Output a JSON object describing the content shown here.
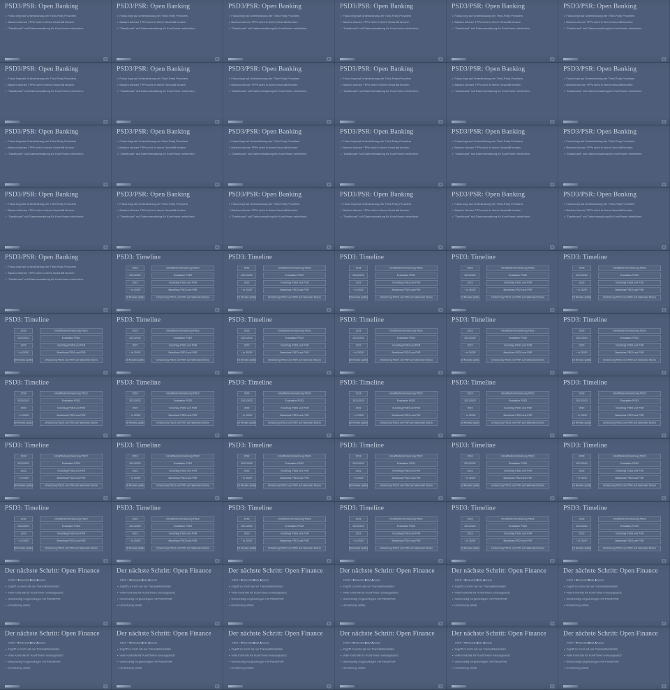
{
  "app": {
    "description": "Thumbnail grid of presentation slide frames"
  },
  "grid": {
    "columns": 6,
    "rows": 11,
    "tiles": [
      "ob",
      "ob",
      "ob",
      "ob",
      "ob",
      "ob",
      "ob",
      "ob",
      "ob",
      "ob",
      "ob",
      "ob",
      "ob",
      "ob",
      "ob",
      "ob",
      "ob",
      "ob",
      "ob",
      "ob",
      "ob",
      "ob",
      "ob",
      "ob",
      "ob",
      "tl",
      "tl",
      "tl",
      "tl",
      "tl",
      "tl",
      "tl",
      "tl",
      "tl",
      "tl",
      "tl",
      "tl",
      "tl",
      "tl",
      "tl",
      "tl",
      "tl",
      "tl",
      "tl",
      "tl",
      "tl",
      "tl",
      "tl",
      "tl",
      "tl",
      "tl",
      "tl",
      "tl",
      "tl",
      "of",
      "of",
      "of",
      "of",
      "of",
      "of",
      "of",
      "of",
      "of",
      "of",
      "of",
      "of"
    ]
  },
  "slides": {
    "open_banking": {
      "title": "PSD3/PSR: Open Banking",
      "bullets": [
        "Fokus liegt auf Unterstützung der Third-Party Providers",
        "Banken können TPPs nicht in ihrem Geschäft hindern",
        "\"Dashboard\" soll Datenverwaltung für Kund*innen erleichtern"
      ]
    },
    "timeline": {
      "title": "PSD3: Timeline",
      "rows": [
        {
          "period": "2018",
          "event": "Inkrafttreten/Umsetzung PSD2"
        },
        {
          "period": "2021/2022",
          "event": "Evaluation PSD2"
        },
        {
          "period": "2023",
          "event": "Vorschlag PSD3 und PSR"
        },
        {
          "period": "~ in 2025?",
          "event": "Beschluss PSD3 und PSR"
        },
        {
          "period": "18 Monate später",
          "event": "Umsetzung PSD3 und PSR auf nationaler Ebene"
        }
      ]
    },
    "open_finance": {
      "title": "Der nächste Schritt: Open Finance",
      "intro_segments": [
        "FIDA = ",
        "F",
        "inancial ",
        "D",
        "ata ",
        "A",
        "ccess"
      ],
      "bullets": [
        "Zugriff zu mehr als nur Transaktionsdaten",
        "Volle Kontrolle für Kund*innen vorausgesetzt",
        "Gleichzeitig vorgeschlagen mit PSD3/PSR",
        "Umsetzung unklar"
      ]
    }
  },
  "colors": {
    "page_background": "#42516b",
    "slide_background": "#4e5d79",
    "title_text": "#c9d4e2",
    "body_text": "#b4c3d7",
    "table_border": "#b2c2d8",
    "footer_mark": "#ceDCf0"
  }
}
